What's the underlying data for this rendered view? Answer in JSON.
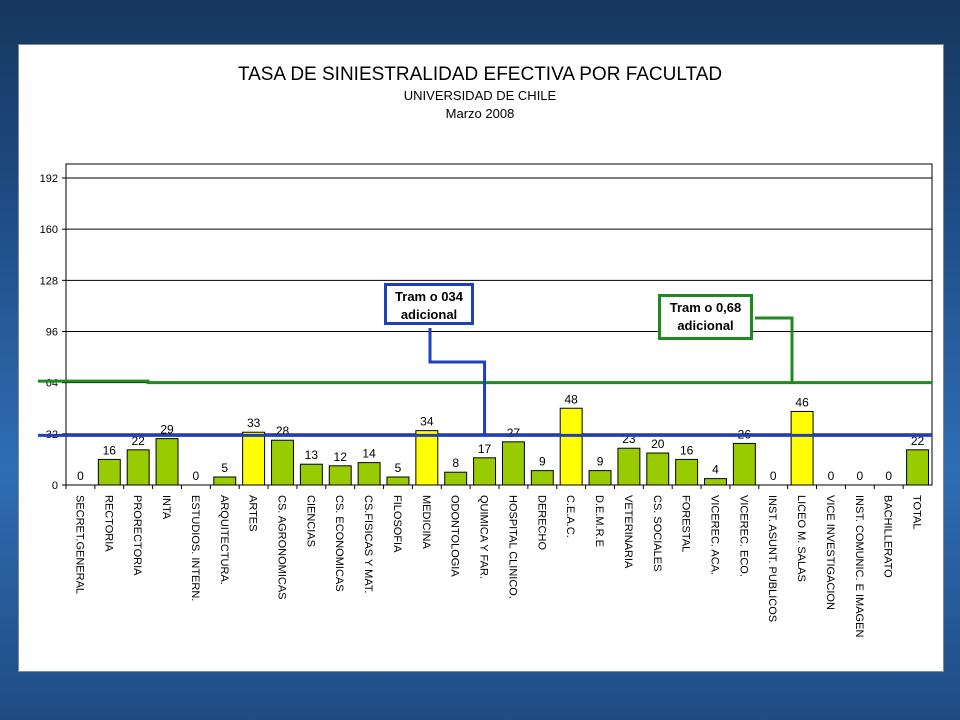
{
  "chart_data": {
    "type": "bar",
    "title": "TASA DE SINIESTRALIDAD EFECTIVA POR FACULTAD",
    "subtitle": "UNIVERSIDAD DE CHILE",
    "period": "Marzo 2008",
    "ylim": [
      0,
      192
    ],
    "yticks": [
      "0",
      "32",
      "64",
      "96",
      "128",
      "160",
      "192"
    ],
    "categories": [
      "SECRET.GENERAL",
      "RECTORIA",
      "PRORECTORIA",
      "INTA",
      "ESTUDIOS. INTERN.",
      "ARQUITECTURA.",
      "ARTES",
      "CS. AGRONOMICAS",
      "CIENCIAS",
      "CS. ECONOMICAS",
      "CS.FISICAS Y MAT.",
      "FILOSOFIA",
      "MEDICINA",
      "ODONTOLOGIA",
      "QUIMICA Y FAR.",
      "HOSPITAL CLINICO.",
      "DERECHO",
      "C.E.A.C.",
      "D.E.M.R.E",
      "VETERINARIA",
      "CS. SOCIALES",
      "FORESTAL",
      "VICEREC. ACA.",
      "VICEREC. ECO.",
      "INST. ASUNT. PUBLICOS",
      "LICEO M. SALAS",
      "VICE INVESTIGACION",
      "INST. COMUNIC. E IMAGEN",
      "BACHILLERATO",
      "TOTAL"
    ],
    "values": [
      0,
      16,
      22,
      29,
      0,
      5,
      33,
      28,
      13,
      12,
      14,
      5,
      34,
      8,
      17,
      27,
      9,
      48,
      9,
      23,
      20,
      16,
      4,
      26,
      0,
      46,
      0,
      0,
      0,
      22
    ],
    "value_labels": [
      "0",
      "16",
      "22",
      "29",
      "0",
      "5",
      "33",
      "28",
      "13",
      "12",
      "14",
      "5",
      "34",
      "8",
      "17",
      "27",
      "9",
      "48",
      "9",
      "23",
      "20",
      "16",
      "4",
      "26",
      "0",
      "46",
      "0",
      "0",
      "0",
      "22"
    ],
    "highlight": [
      false,
      false,
      false,
      false,
      false,
      false,
      true,
      false,
      false,
      false,
      false,
      false,
      true,
      false,
      false,
      false,
      false,
      true,
      false,
      false,
      false,
      false,
      false,
      false,
      false,
      true,
      false,
      false,
      false,
      false
    ],
    "colors": {
      "bar": "#99cc00",
      "highlight": "#ffff00",
      "blue_line": "#1f3fbf",
      "green_line": "#1f8a1f"
    },
    "reference_lines": [
      {
        "value": 31,
        "color": "#1f3fbf"
      },
      {
        "value": 64,
        "color": "#1f8a1f"
      }
    ],
    "grid": true
  },
  "callouts": {
    "blue": {
      "line1": "Tram o 034",
      "line2": "adicional"
    },
    "green": {
      "line1": "Tram o 0,68",
      "line2": "adicional"
    }
  }
}
